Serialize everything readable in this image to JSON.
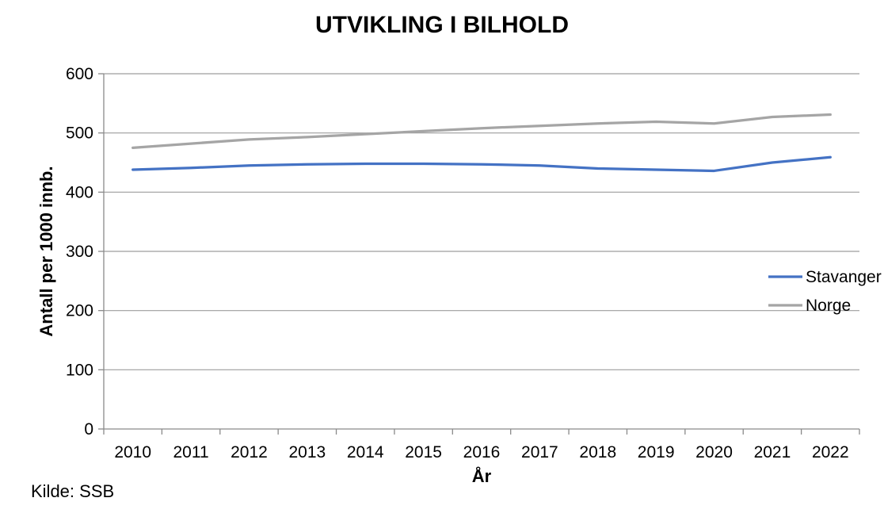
{
  "page": {
    "background": "#ffffff"
  },
  "source_note": "Kilde: SSB",
  "chart_data": {
    "type": "line",
    "title": "UTVIKLING I BILHOLD",
    "xlabel": "År",
    "ylabel": "Antall per 1000 innb.",
    "categories": [
      "2010",
      "2011",
      "2012",
      "2013",
      "2014",
      "2015",
      "2016",
      "2017",
      "2018",
      "2019",
      "2020",
      "2021",
      "2022"
    ],
    "series": [
      {
        "name": "Stavanger",
        "color": "#4472C4",
        "values": [
          438,
          441,
          445,
          447,
          448,
          448,
          447,
          445,
          440,
          438,
          436,
          450,
          459
        ]
      },
      {
        "name": "Norge",
        "color": "#A5A5A5",
        "values": [
          475,
          482,
          489,
          493,
          498,
          503,
          508,
          512,
          516,
          519,
          516,
          527,
          531
        ]
      }
    ],
    "ylim": [
      0,
      600
    ],
    "ytick_step": 100,
    "grid": true,
    "legend_position": "right-inside",
    "legend_entries": [
      "Stavanger",
      "Norge"
    ],
    "axis_color": "#8a8a8a",
    "grid_color": "#9d9d9d",
    "text_color": "#000000"
  }
}
